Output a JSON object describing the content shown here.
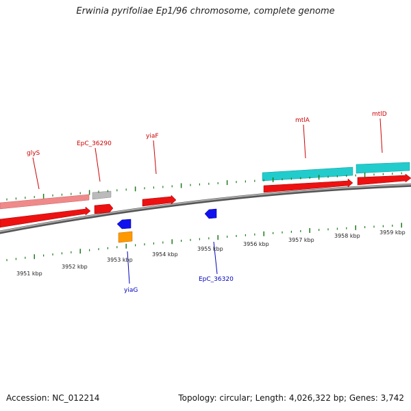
{
  "title": "Erwinia pyrifoliae Ep1/96 chromosome, complete genome",
  "footer": {
    "accession": "Accession: NC_012214",
    "topology": "Topology: circular; Length: 4,026,322 bp; Genes: 3,742"
  },
  "colors": {
    "cds": "#ee1111",
    "gene_pink": "#f08a8a",
    "gene_gray": "#bbbbbb",
    "gene_cyan": "#22cccc",
    "reverse_blue": "#1111ee",
    "reverse_orange": "#ff9900",
    "tick": "#1a7a1a",
    "backbone": "#888888"
  },
  "tick_labels": [
    "3951 kbp",
    "3952 kbp",
    "3953 kbp",
    "3954 kbp",
    "3955 kbp",
    "3956 kbp",
    "3957 kbp",
    "3958 kbp",
    "3959 kbp"
  ],
  "top_labels": [
    "glyS",
    "EpC_36290",
    "yiaF",
    "mtlA",
    "mtlD"
  ],
  "bottom_labels": [
    "yiaG",
    "EpC_36320"
  ]
}
